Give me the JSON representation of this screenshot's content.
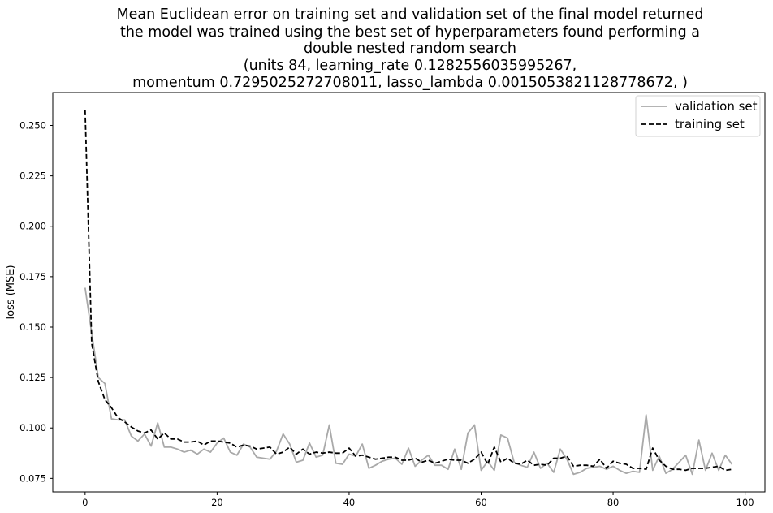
{
  "chart_data": {
    "type": "line",
    "title_lines": [
      "Mean Euclidean error on training set and validation set of the final model returned",
      "the model was trained using the best set of hyperparameters found performing a",
      "double nested random search",
      "(units 84, learning_rate 0.1282556035995267,",
      "momentum 0.7295025272708011, lasso_lambda 0.0015053821128778672, )"
    ],
    "xlabel": "",
    "ylabel": "loss (MSE)",
    "xlim": [
      -4.9,
      103.0
    ],
    "ylim": [
      0.0683,
      0.2663
    ],
    "xticks": [
      0,
      20,
      40,
      60,
      80,
      100
    ],
    "yticks": [
      0.075,
      0.1,
      0.125,
      0.15,
      0.175,
      0.2,
      0.225,
      0.25
    ],
    "ytick_labels": [
      "0.075",
      "0.100",
      "0.125",
      "0.150",
      "0.175",
      "0.200",
      "0.225",
      "0.250"
    ],
    "grid": false,
    "legend_position": "top-right",
    "series": [
      {
        "name": "validation set",
        "color": "#a9a9a9",
        "style": "solid",
        "values": [
          0.1695,
          0.147,
          0.125,
          0.122,
          0.1045,
          0.104,
          0.104,
          0.096,
          0.0935,
          0.097,
          0.091,
          0.1025,
          0.0905,
          0.0905,
          0.0895,
          0.088,
          0.089,
          0.087,
          0.0895,
          0.088,
          0.0925,
          0.095,
          0.088,
          0.0865,
          0.092,
          0.0905,
          0.0855,
          0.085,
          0.0845,
          0.0885,
          0.097,
          0.092,
          0.083,
          0.084,
          0.0925,
          0.0855,
          0.0865,
          0.1015,
          0.0825,
          0.082,
          0.087,
          0.086,
          0.092,
          0.08,
          0.0815,
          0.0835,
          0.0845,
          0.085,
          0.082,
          0.09,
          0.081,
          0.084,
          0.0865,
          0.0815,
          0.0815,
          0.0795,
          0.0895,
          0.0795,
          0.0975,
          0.1015,
          0.079,
          0.0835,
          0.079,
          0.0965,
          0.095,
          0.083,
          0.0815,
          0.0805,
          0.088,
          0.08,
          0.0825,
          0.078,
          0.0895,
          0.0845,
          0.077,
          0.078,
          0.08,
          0.0805,
          0.081,
          0.0795,
          0.081,
          0.079,
          0.0775,
          0.0785,
          0.078,
          0.1065,
          0.079,
          0.086,
          0.0775,
          0.0795,
          0.083,
          0.0865,
          0.077,
          0.094,
          0.079,
          0.0875,
          0.079,
          0.0865,
          0.082
        ]
      },
      {
        "name": "training set",
        "color": "#000000",
        "style": "dashed",
        "values": [
          0.2575,
          0.142,
          0.123,
          0.114,
          0.11,
          0.105,
          0.103,
          0.1005,
          0.0985,
          0.0975,
          0.099,
          0.0945,
          0.0975,
          0.0945,
          0.0945,
          0.093,
          0.093,
          0.0935,
          0.0915,
          0.0935,
          0.0935,
          0.093,
          0.0925,
          0.0905,
          0.0915,
          0.091,
          0.0895,
          0.09,
          0.0905,
          0.087,
          0.088,
          0.0905,
          0.087,
          0.0895,
          0.087,
          0.088,
          0.0875,
          0.088,
          0.0875,
          0.0875,
          0.09,
          0.086,
          0.0865,
          0.0855,
          0.0845,
          0.085,
          0.0855,
          0.0855,
          0.084,
          0.084,
          0.085,
          0.083,
          0.084,
          0.0825,
          0.0835,
          0.0845,
          0.084,
          0.084,
          0.0825,
          0.0845,
          0.088,
          0.082,
          0.0905,
          0.083,
          0.085,
          0.0825,
          0.082,
          0.084,
          0.0815,
          0.082,
          0.0815,
          0.085,
          0.085,
          0.086,
          0.081,
          0.0815,
          0.0815,
          0.081,
          0.0845,
          0.08,
          0.0835,
          0.0825,
          0.082,
          0.08,
          0.08,
          0.0795,
          0.09,
          0.084,
          0.081,
          0.0795,
          0.0795,
          0.079,
          0.08,
          0.08,
          0.08,
          0.0805,
          0.081,
          0.079,
          0.0795
        ]
      }
    ]
  }
}
